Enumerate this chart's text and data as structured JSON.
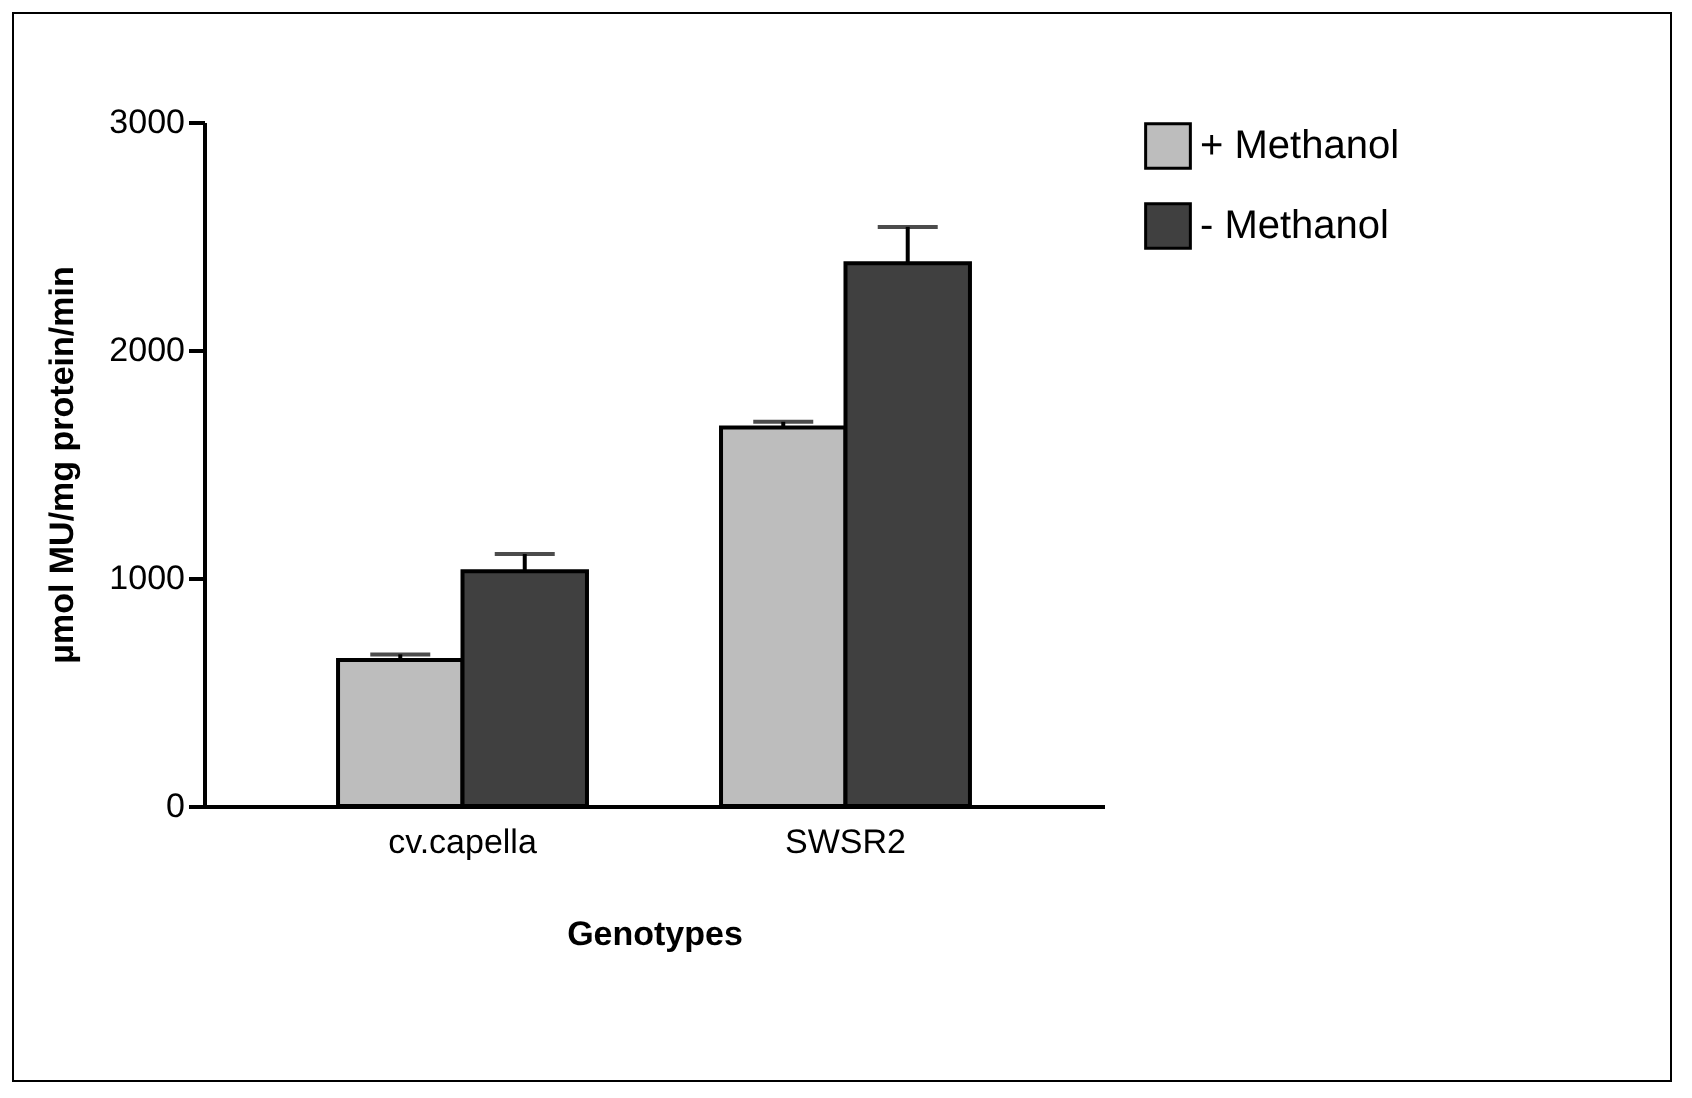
{
  "chart_data": {
    "type": "bar",
    "xlabel": "Genotypes",
    "ylabel": "µmol MU/mg protein/min",
    "categories": [
      "cv.capella",
      "SWSR2"
    ],
    "series": [
      {
        "name": "+ Methanol",
        "color": "#bdbdbd",
        "values": [
          640,
          1660
        ],
        "errors": [
          25,
          25
        ]
      },
      {
        "name": "- Methanol",
        "color": "#404040",
        "values": [
          1030,
          2380
        ],
        "errors": [
          75,
          160
        ]
      }
    ],
    "ylim": [
      0,
      3000
    ],
    "yticks": [
      0,
      1000,
      2000,
      3000
    ],
    "grid": false,
    "legend": "top right"
  }
}
